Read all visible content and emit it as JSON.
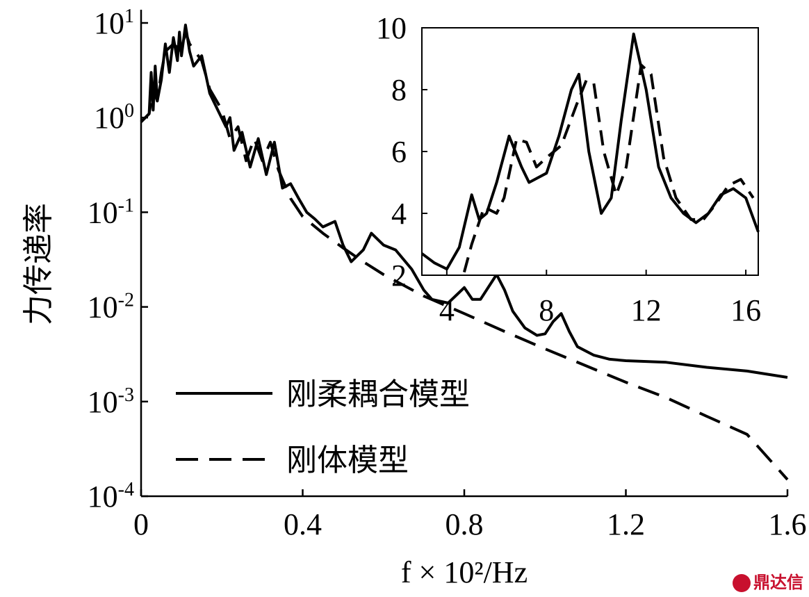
{
  "chart_data": [
    {
      "id": "main",
      "type": "line",
      "xlabel": "f × 10²/Hz",
      "ylabel": "力传递率",
      "xlim": [
        0,
        1.6
      ],
      "ylim": [
        0.0001,
        10
      ],
      "yscale": "log",
      "xticks": [
        "0",
        "0.4",
        "0.8",
        "1.2",
        "1.6"
      ],
      "yticks": [
        {
          "base": "10",
          "exp": "1"
        },
        {
          "base": "10",
          "exp": "0"
        },
        {
          "base": "10",
          "exp": "-1"
        },
        {
          "base": "10",
          "exp": "-2"
        },
        {
          "base": "10",
          "exp": "-3"
        },
        {
          "base": "10",
          "exp": "-4"
        }
      ],
      "grid": false,
      "legend_position": "bottom-center",
      "series": [
        {
          "name": "刚柔耦合模型",
          "style": "solid",
          "points": [
            [
              0,
              0.9
            ],
            [
              0.02,
              1.1
            ],
            [
              0.025,
              3
            ],
            [
              0.03,
              1.2
            ],
            [
              0.035,
              3.5
            ],
            [
              0.04,
              1.5
            ],
            [
              0.05,
              2.5
            ],
            [
              0.06,
              6
            ],
            [
              0.07,
              3
            ],
            [
              0.08,
              7
            ],
            [
              0.09,
              4
            ],
            [
              0.095,
              8
            ],
            [
              0.1,
              4.5
            ],
            [
              0.11,
              9.5
            ],
            [
              0.12,
              5
            ],
            [
              0.13,
              3.5
            ],
            [
              0.15,
              4.5
            ],
            [
              0.17,
              1.8
            ],
            [
              0.19,
              1.2
            ],
            [
              0.21,
              0.8
            ],
            [
              0.22,
              1.0
            ],
            [
              0.23,
              0.45
            ],
            [
              0.25,
              0.7
            ],
            [
              0.27,
              0.3
            ],
            [
              0.29,
              0.6
            ],
            [
              0.31,
              0.25
            ],
            [
              0.33,
              0.55
            ],
            [
              0.35,
              0.18
            ],
            [
              0.37,
              0.2
            ],
            [
              0.39,
              0.14
            ],
            [
              0.41,
              0.1
            ],
            [
              0.43,
              0.085
            ],
            [
              0.45,
              0.07
            ],
            [
              0.48,
              0.08
            ],
            [
              0.5,
              0.045
            ],
            [
              0.52,
              0.03
            ],
            [
              0.55,
              0.04
            ],
            [
              0.57,
              0.06
            ],
            [
              0.6,
              0.045
            ],
            [
              0.63,
              0.04
            ],
            [
              0.67,
              0.025
            ],
            [
              0.7,
              0.015
            ],
            [
              0.72,
              0.012
            ],
            [
              0.76,
              0.011
            ],
            [
              0.8,
              0.016
            ],
            [
              0.82,
              0.012
            ],
            [
              0.84,
              0.012
            ],
            [
              0.88,
              0.022
            ],
            [
              0.9,
              0.015
            ],
            [
              0.92,
              0.009
            ],
            [
              0.95,
              0.006
            ],
            [
              0.98,
              0.005
            ],
            [
              1.0,
              0.0052
            ],
            [
              1.02,
              0.007
            ],
            [
              1.04,
              0.0085
            ],
            [
              1.06,
              0.0055
            ],
            [
              1.08,
              0.0038
            ],
            [
              1.12,
              0.0031
            ],
            [
              1.16,
              0.0028
            ],
            [
              1.2,
              0.0027
            ],
            [
              1.3,
              0.0026
            ],
            [
              1.4,
              0.0023
            ],
            [
              1.5,
              0.0021
            ],
            [
              1.6,
              0.0018
            ]
          ]
        },
        {
          "name": "刚体模型",
          "style": "dashed",
          "points": [
            [
              0,
              0.9
            ],
            [
              0.02,
              1.1
            ],
            [
              0.03,
              2
            ],
            [
              0.04,
              1.5
            ],
            [
              0.05,
              3
            ],
            [
              0.06,
              5
            ],
            [
              0.08,
              6
            ],
            [
              0.1,
              5
            ],
            [
              0.11,
              8
            ],
            [
              0.12,
              6
            ],
            [
              0.15,
              4
            ],
            [
              0.17,
              2
            ],
            [
              0.2,
              1.2
            ],
            [
              0.22,
              0.6
            ],
            [
              0.24,
              0.8
            ],
            [
              0.26,
              0.35
            ],
            [
              0.28,
              0.6
            ],
            [
              0.3,
              0.35
            ],
            [
              0.32,
              0.55
            ],
            [
              0.34,
              0.28
            ],
            [
              0.37,
              0.14
            ],
            [
              0.4,
              0.09
            ],
            [
              0.45,
              0.06
            ],
            [
              0.5,
              0.042
            ],
            [
              0.55,
              0.03
            ],
            [
              0.6,
              0.022
            ],
            [
              0.7,
              0.013
            ],
            [
              0.8,
              0.0085
            ],
            [
              0.9,
              0.0055
            ],
            [
              1.0,
              0.0036
            ],
            [
              1.1,
              0.0024
            ],
            [
              1.2,
              0.0016
            ],
            [
              1.3,
              0.0011
            ],
            [
              1.4,
              0.0007
            ],
            [
              1.5,
              0.00045
            ],
            [
              1.6,
              0.00015
            ]
          ]
        }
      ]
    },
    {
      "id": "inset",
      "type": "line",
      "xlim": [
        3,
        16.5
      ],
      "ylim": [
        2,
        10
      ],
      "xticks": [
        "4",
        "8",
        "12",
        "16"
      ],
      "yticks": [
        "2",
        "4",
        "6",
        "8",
        "10"
      ],
      "grid": false,
      "series": [
        {
          "name": "",
          "style": "solid",
          "points": [
            [
              3.0,
              2.7
            ],
            [
              3.5,
              2.4
            ],
            [
              4.0,
              2.2
            ],
            [
              4.5,
              2.9
            ],
            [
              5.0,
              4.6
            ],
            [
              5.3,
              3.8
            ],
            [
              5.6,
              4.0
            ],
            [
              6.0,
              5.0
            ],
            [
              6.5,
              6.5
            ],
            [
              7.0,
              5.5
            ],
            [
              7.3,
              5.0
            ],
            [
              8.0,
              5.3
            ],
            [
              8.5,
              6.5
            ],
            [
              9.0,
              8.0
            ],
            [
              9.3,
              8.5
            ],
            [
              9.7,
              6.0
            ],
            [
              10.2,
              4.0
            ],
            [
              10.6,
              4.5
            ],
            [
              11.0,
              7.0
            ],
            [
              11.5,
              9.8
            ],
            [
              12.0,
              8.0
            ],
            [
              12.5,
              5.5
            ],
            [
              13.0,
              4.5
            ],
            [
              13.5,
              4.0
            ],
            [
              14.0,
              3.7
            ],
            [
              14.5,
              4.0
            ],
            [
              15.0,
              4.6
            ],
            [
              15.5,
              4.8
            ],
            [
              16.0,
              4.5
            ],
            [
              16.5,
              3.4
            ]
          ]
        },
        {
          "name": "",
          "style": "dashed",
          "points": [
            [
              4.7,
              2.1
            ],
            [
              5.0,
              3.0
            ],
            [
              5.5,
              4.2
            ],
            [
              6.0,
              4.0
            ],
            [
              6.3,
              4.5
            ],
            [
              6.8,
              6.4
            ],
            [
              7.2,
              6.3
            ],
            [
              7.6,
              5.5
            ],
            [
              8.0,
              5.8
            ],
            [
              8.6,
              6.2
            ],
            [
              9.2,
              7.5
            ],
            [
              9.6,
              8.3
            ],
            [
              9.9,
              8.2
            ],
            [
              10.3,
              6.0
            ],
            [
              10.8,
              4.6
            ],
            [
              11.2,
              5.5
            ],
            [
              11.8,
              8.8
            ],
            [
              12.2,
              8.5
            ],
            [
              12.7,
              5.8
            ],
            [
              13.2,
              4.5
            ],
            [
              13.8,
              3.8
            ],
            [
              14.3,
              3.8
            ],
            [
              14.8,
              4.3
            ],
            [
              15.3,
              4.9
            ],
            [
              15.8,
              5.1
            ],
            [
              16.3,
              4.5
            ]
          ]
        }
      ]
    }
  ],
  "legend": [
    {
      "label": "刚柔耦合模型",
      "style": "solid"
    },
    {
      "label": "刚体模型",
      "style": "dashed"
    }
  ],
  "watermark": "鼎达信"
}
